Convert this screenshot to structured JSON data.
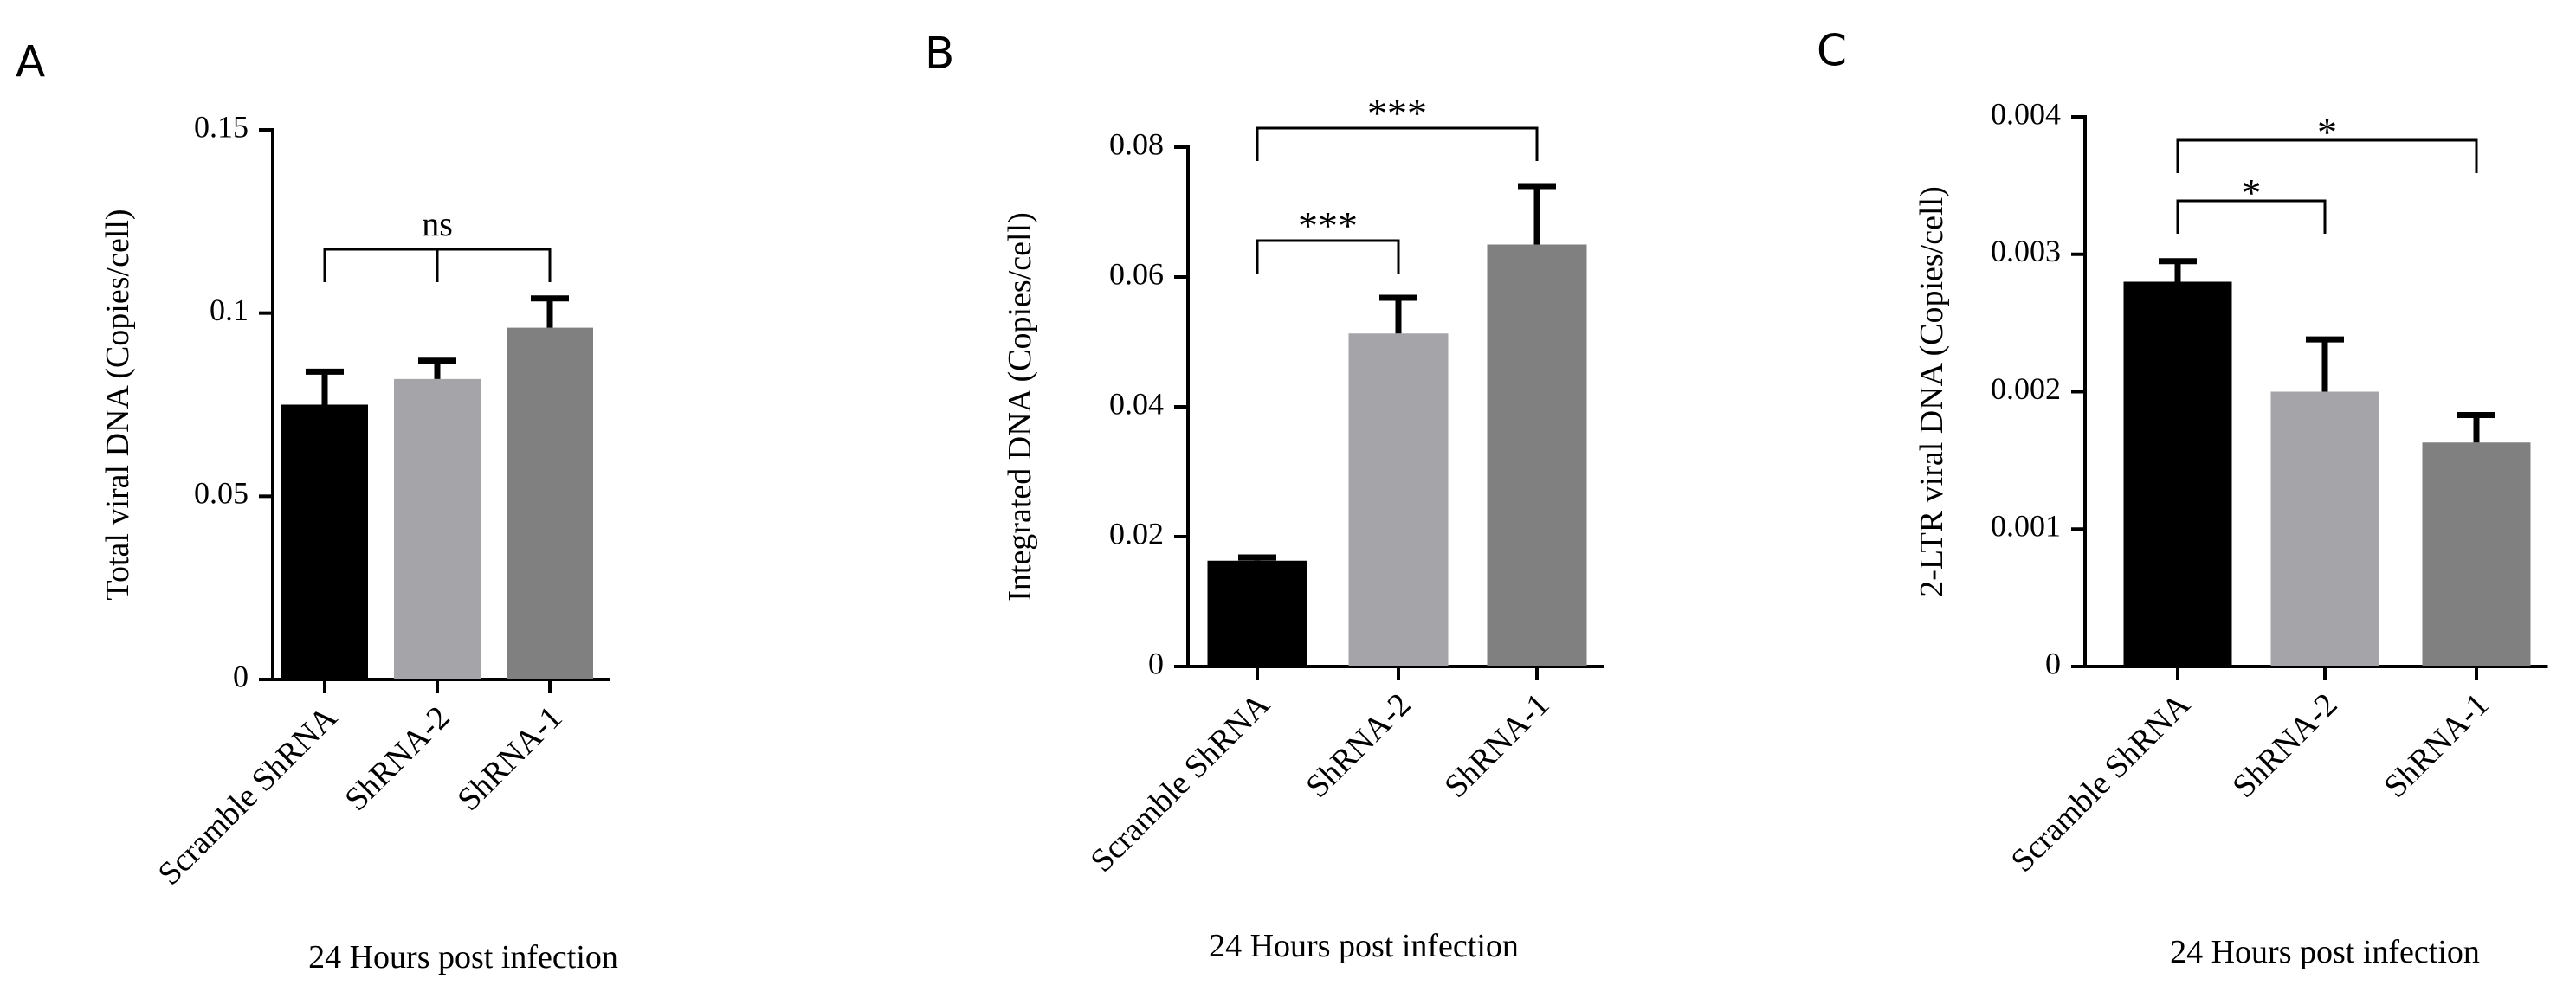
{
  "chart_data": [
    {
      "panel_label": "A",
      "type": "bar",
      "categories": [
        "Scramble ShRNA",
        "ShRNA-2",
        "ShRNA-1"
      ],
      "values": [
        0.075,
        0.082,
        0.096
      ],
      "errors": [
        0.009,
        0.005,
        0.008
      ],
      "colors": [
        "#000000",
        "#a5a4a9",
        "#808080"
      ],
      "ylabel": "Total viral DNA (Copies/cell)",
      "xlabel": "24 Hours post infection",
      "ylim": [
        0,
        0.15
      ],
      "yticks": [
        0,
        0.05,
        0.1,
        0.15
      ],
      "ytick_labels": [
        "0",
        "0.05",
        "0.1",
        "0.15"
      ],
      "significance": [
        {
          "from": 0,
          "to": 2,
          "label": "ns",
          "mid_tick_at": 1
        }
      ]
    },
    {
      "panel_label": "B",
      "type": "bar",
      "categories": [
        "Scramble ShRNA",
        "ShRNA-2",
        "ShRNA-1"
      ],
      "values": [
        0.0163,
        0.0513,
        0.065
      ],
      "errors": [
        0.0005,
        0.0055,
        0.009
      ],
      "colors": [
        "#000000",
        "#a5a4a9",
        "#808080"
      ],
      "ylabel": "Integrated DNA (Copies/cell)",
      "xlabel": "24 Hours post infection",
      "ylim": [
        0,
        0.08
      ],
      "yticks": [
        0,
        0.02,
        0.04,
        0.06,
        0.08
      ],
      "ytick_labels": [
        "0",
        "0.02",
        "0.04",
        "0.06",
        "0.08"
      ],
      "significance": [
        {
          "from": 0,
          "to": 1,
          "label": "***"
        },
        {
          "from": 0,
          "to": 2,
          "label": "***"
        }
      ]
    },
    {
      "panel_label": "C",
      "type": "bar",
      "categories": [
        "Scramble ShRNA",
        "ShRNA-2",
        "ShRNA-1"
      ],
      "values": [
        0.0028,
        0.002,
        0.00163
      ],
      "errors": [
        0.00015,
        0.00038,
        0.0002
      ],
      "colors": [
        "#000000",
        "#a5a4a9",
        "#808080"
      ],
      "ylabel": "2-LTR viral  DNA (Copies/cell)",
      "xlabel": "24 Hours post infection",
      "ylim": [
        0,
        0.004
      ],
      "yticks": [
        0,
        0.001,
        0.002,
        0.003,
        0.004
      ],
      "ytick_labels": [
        "0",
        "0.001",
        "0.002",
        "0.003",
        "0.004"
      ],
      "significance": [
        {
          "from": 0,
          "to": 1,
          "label": "*"
        },
        {
          "from": 0,
          "to": 2,
          "label": "*"
        }
      ]
    }
  ]
}
